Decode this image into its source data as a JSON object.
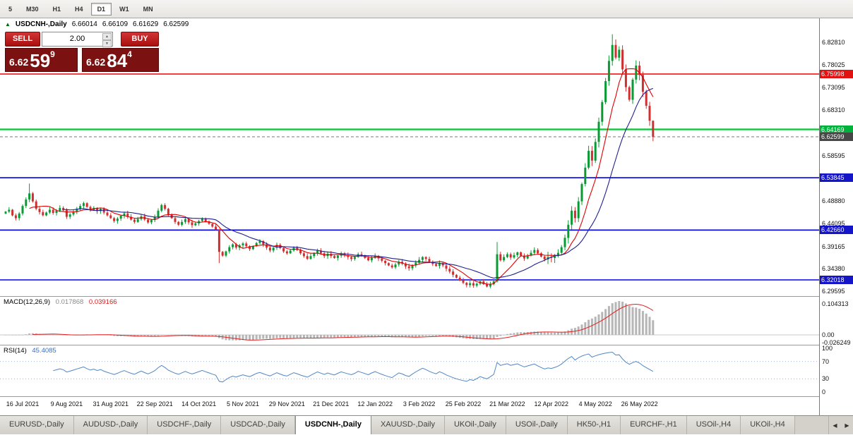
{
  "toolbar": {
    "timeframes": [
      {
        "label": "5",
        "active": false
      },
      {
        "label": "M30",
        "active": false
      },
      {
        "label": "H1",
        "active": false
      },
      {
        "label": "H4",
        "active": false
      },
      {
        "label": "D1",
        "active": true
      },
      {
        "label": "W1",
        "active": false
      },
      {
        "label": "MN",
        "active": false
      }
    ]
  },
  "quote_header": {
    "arrow": "▲",
    "symbol": "USDCNH-,Daily",
    "open": "6.66014",
    "high": "6.66109",
    "low": "6.61629",
    "close": "6.62599"
  },
  "trade_panel": {
    "sell_label": "SELL",
    "buy_label": "BUY",
    "volume": "2.00",
    "spin_up": "▲",
    "spin_down": "▼",
    "sell_price": {
      "big": "6.62",
      "main": "59",
      "sup": "9"
    },
    "buy_price": {
      "big": "6.62",
      "main": "84",
      "sup": "4"
    }
  },
  "chart_data": {
    "type": "candlestick",
    "title": "USDCNH-,Daily",
    "first_open": 6.462,
    "closes": [
      6.466,
      6.47,
      6.458,
      6.452,
      6.462,
      6.478,
      6.492,
      6.505,
      6.488,
      6.472,
      6.465,
      6.458,
      6.464,
      6.47,
      6.463,
      6.468,
      6.474,
      6.469,
      6.455,
      6.46,
      6.466,
      6.472,
      6.478,
      6.484,
      6.476,
      6.469,
      6.474,
      6.467,
      6.472,
      6.464,
      6.458,
      6.452,
      6.446,
      6.451,
      6.457,
      6.462,
      6.455,
      6.449,
      6.444,
      6.45,
      6.456,
      6.449,
      6.443,
      6.448,
      6.455,
      6.468,
      6.48,
      6.472,
      6.46,
      6.452,
      6.444,
      6.438,
      6.444,
      6.45,
      6.443,
      6.437,
      6.441,
      6.446,
      6.451,
      6.445,
      6.44,
      6.434,
      6.428,
      6.38,
      6.372,
      6.381,
      6.39,
      6.396,
      6.389,
      6.394,
      6.398,
      6.392,
      6.386,
      6.392,
      6.399,
      6.403,
      6.396,
      6.389,
      6.383,
      6.389,
      6.395,
      6.388,
      6.381,
      6.377,
      6.383,
      6.389,
      6.384,
      6.377,
      6.371,
      6.365,
      6.371,
      6.377,
      6.383,
      6.377,
      6.371,
      6.376,
      6.371,
      6.367,
      6.372,
      6.377,
      6.373,
      6.369,
      6.365,
      6.369,
      6.375,
      6.371,
      6.367,
      6.362,
      6.367,
      6.371,
      6.366,
      6.361,
      6.356,
      6.351,
      6.347,
      6.353,
      6.359,
      6.355,
      6.349,
      6.345,
      6.351,
      6.357,
      6.363,
      6.369,
      6.365,
      6.359,
      6.354,
      6.35,
      6.356,
      6.351,
      6.344,
      6.338,
      6.331,
      6.325,
      6.319,
      6.314,
      6.309,
      6.313,
      6.308,
      6.312,
      6.317,
      6.311,
      6.306,
      6.311,
      6.317,
      6.375,
      6.362,
      6.369,
      6.375,
      6.368,
      6.373,
      6.379,
      6.372,
      6.366,
      6.372,
      6.378,
      6.384,
      6.377,
      6.37,
      6.364,
      6.369,
      6.367,
      6.372,
      6.378,
      6.39,
      6.41,
      6.438,
      6.468,
      6.452,
      6.488,
      6.525,
      6.56,
      6.596,
      6.575,
      6.615,
      6.658,
      6.7,
      6.745,
      6.788,
      6.822,
      6.795,
      6.812,
      6.77,
      6.732,
      6.705,
      6.748,
      6.778,
      6.758,
      6.722,
      6.692,
      6.66,
      6.626
    ],
    "last": {
      "o": 6.66014,
      "h": 6.66109,
      "l": 6.61629,
      "c": 6.62599
    },
    "wick_overrides": {
      "7": {
        "high": 6.526
      },
      "63": {
        "low": 6.356
      },
      "145": {
        "high": 6.401
      },
      "179": {
        "high": 6.845
      }
    },
    "colors": {
      "up": "#089b33",
      "down": "#d02f2f"
    },
    "ma": [
      {
        "period": 8,
        "color": "#e00000"
      },
      {
        "period": 18,
        "color": "#202090"
      }
    ],
    "hlines": [
      {
        "value": 6.75998,
        "color": "#ee0000",
        "w": 1.4
      },
      {
        "value": 6.64169,
        "color": "#00c832",
        "w": 2.2
      },
      {
        "value": 6.53845,
        "color": "#0000ee",
        "w": 1.6
      },
      {
        "value": 6.4266,
        "color": "#0000ee",
        "w": 1.6
      },
      {
        "value": 6.32018,
        "color": "#0000ee",
        "w": 1.6
      }
    ],
    "price_scale": {
      "ticks": [
        {
          "text": "6.82810",
          "value": 6.8281
        },
        {
          "text": "6.78025",
          "value": 6.78025
        },
        {
          "text": "6.73095",
          "value": 6.73095
        },
        {
          "text": "6.68310",
          "value": 6.6831
        },
        {
          "text": "6.58595",
          "value": 6.58595
        },
        {
          "text": "6.48880",
          "value": 6.4888
        },
        {
          "text": "6.44095",
          "value": 6.44095
        },
        {
          "text": "6.39165",
          "value": 6.39165
        },
        {
          "text": "6.34380",
          "value": 6.3438
        },
        {
          "text": "6.29595",
          "value": 6.29595
        }
      ],
      "badges": [
        {
          "text": "6.75998",
          "value": 6.75998,
          "color": "#e21212"
        },
        {
          "text": "6.64169",
          "value": 6.64169,
          "color": "#00b13c"
        },
        {
          "text": "6.62599",
          "value": 6.62599,
          "color": "#474747"
        },
        {
          "text": "6.53845",
          "value": 6.53845,
          "color": "#1414c8"
        },
        {
          "text": "6.42660",
          "value": 6.4266,
          "color": "#1414c8"
        },
        {
          "text": "6.32018",
          "value": 6.32018,
          "color": "#1414c8"
        }
      ]
    },
    "macd": {
      "label": "MACD(12,26,9)",
      "value_main": "0.017868",
      "value_signal": "0.039166",
      "fast": 12,
      "slow": 26,
      "signal": 9,
      "axis": [
        {
          "text": "0.104313",
          "y": 10
        },
        {
          "text": "0.00",
          "y": 54
        },
        {
          "text": "-0.026249",
          "y": 65
        }
      ]
    },
    "rsi": {
      "label": "RSI(14)",
      "value": "45.4085",
      "period": 14,
      "levels": [
        70,
        30
      ],
      "axis": [
        {
          "text": "100",
          "value": 100
        },
        {
          "text": "70",
          "value": 70
        },
        {
          "text": "30",
          "value": 30
        },
        {
          "text": "0",
          "value": 0
        }
      ]
    },
    "date_labels": [
      {
        "index": 5,
        "label": "16 Jul 2021"
      },
      {
        "index": 18,
        "label": "9 Aug 2021"
      },
      {
        "index": 31,
        "label": "31 Aug 2021"
      },
      {
        "index": 44,
        "label": "22 Sep 2021"
      },
      {
        "index": 57,
        "label": "14 Oct 2021"
      },
      {
        "index": 70,
        "label": "5 Nov 2021"
      },
      {
        "index": 83,
        "label": "29 Nov 2021"
      },
      {
        "index": 96,
        "label": "21 Dec 2021"
      },
      {
        "index": 109,
        "label": "12 Jan 2022"
      },
      {
        "index": 122,
        "label": "3 Feb 2022"
      },
      {
        "index": 135,
        "label": "25 Feb 2022"
      },
      {
        "index": 148,
        "label": "21 Mar 2022"
      },
      {
        "index": 161,
        "label": "12 Apr 2022"
      },
      {
        "index": 174,
        "label": "4 May 2022"
      },
      {
        "index": 187,
        "label": "26 May 2022"
      }
    ]
  },
  "bottom_tabs": {
    "nav_left": "◀",
    "nav_right": "▶",
    "tabs": [
      {
        "label": "EURUSD-,Daily",
        "active": false
      },
      {
        "label": "AUDUSD-,Daily",
        "active": false
      },
      {
        "label": "USDCHF-,Daily",
        "active": false
      },
      {
        "label": "USDCAD-,Daily",
        "active": false
      },
      {
        "label": "USDCNH-,Daily",
        "active": true
      },
      {
        "label": "XAUUSD-,Daily",
        "active": false
      },
      {
        "label": "UKOil-,Daily",
        "active": false
      },
      {
        "label": "USOil-,Daily",
        "active": false
      },
      {
        "label": "HK50-,H1",
        "active": false
      },
      {
        "label": "EURCHF-,H1",
        "active": false
      },
      {
        "label": "USOil-,H4",
        "active": false
      },
      {
        "label": "UKOil-,H4",
        "active": false
      }
    ]
  }
}
